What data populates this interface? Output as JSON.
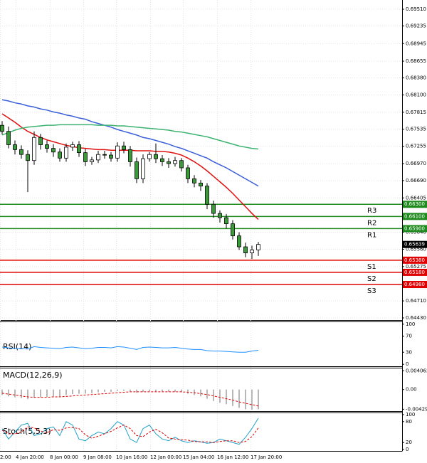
{
  "chart_data": [
    {
      "type": "candlestick",
      "open": [
        0.676,
        0.675,
        0.6728,
        0.672,
        0.6712,
        0.6702,
        0.674,
        0.6728,
        0.6722,
        0.6716,
        0.6706,
        0.6724,
        0.6728,
        0.6715,
        0.67,
        0.6703,
        0.6712,
        0.6711,
        0.6706,
        0.6726,
        0.672,
        0.67,
        0.6672,
        0.6705,
        0.6712,
        0.6705,
        0.67,
        0.6697,
        0.6702,
        0.669,
        0.6672,
        0.6665,
        0.666,
        0.663,
        0.6615,
        0.6608,
        0.6598,
        0.6578,
        0.656,
        0.655,
        0.6555
      ],
      "high": [
        0.6767,
        0.6758,
        0.6735,
        0.6727,
        0.6719,
        0.675,
        0.6746,
        0.6735,
        0.6729,
        0.6722,
        0.673,
        0.6733,
        0.6734,
        0.6721,
        0.6708,
        0.6718,
        0.6718,
        0.6716,
        0.6732,
        0.6733,
        0.6726,
        0.6707,
        0.6712,
        0.6716,
        0.673,
        0.6711,
        0.6706,
        0.6708,
        0.6706,
        0.6695,
        0.6678,
        0.667,
        0.6665,
        0.6636,
        0.662,
        0.6614,
        0.6604,
        0.6584,
        0.6567,
        0.6562,
        0.6568
      ],
      "low": [
        0.6745,
        0.6722,
        0.6712,
        0.6705,
        0.665,
        0.6695,
        0.672,
        0.6715,
        0.6708,
        0.67,
        0.67,
        0.6718,
        0.6708,
        0.6693,
        0.6695,
        0.6698,
        0.6705,
        0.67,
        0.67,
        0.6714,
        0.6692,
        0.6665,
        0.6665,
        0.67,
        0.6698,
        0.6693,
        0.669,
        0.6692,
        0.6684,
        0.6665,
        0.6658,
        0.6652,
        0.6622,
        0.6608,
        0.66,
        0.659,
        0.6572,
        0.6555,
        0.6543,
        0.654,
        0.6545
      ],
      "close": [
        0.675,
        0.6728,
        0.672,
        0.6712,
        0.6702,
        0.674,
        0.6728,
        0.6722,
        0.6716,
        0.6706,
        0.6724,
        0.6728,
        0.6715,
        0.67,
        0.6703,
        0.6712,
        0.6711,
        0.6706,
        0.6726,
        0.672,
        0.67,
        0.6672,
        0.6705,
        0.6712,
        0.6705,
        0.67,
        0.6697,
        0.6702,
        0.669,
        0.6672,
        0.6665,
        0.666,
        0.663,
        0.6615,
        0.6608,
        0.6598,
        0.6578,
        0.656,
        0.655,
        0.6555,
        0.65639
      ],
      "up_color": "#ffffff",
      "down_color": "#3a9a3a",
      "lines": [
        {
          "color": "#3a5fd9",
          "values": [
            0.6802,
            0.68,
            0.6797,
            0.6795,
            0.6792,
            0.679,
            0.6787,
            0.6785,
            0.6782,
            0.678,
            0.6777,
            0.6775,
            0.6772,
            0.677,
            0.6766,
            0.6763,
            0.676,
            0.6757,
            0.6753,
            0.675,
            0.6747,
            0.6744,
            0.674,
            0.6738,
            0.6735,
            0.6732,
            0.6729,
            0.6725,
            0.6722,
            0.6718,
            0.6714,
            0.671,
            0.6706,
            0.67,
            0.6695,
            0.669,
            0.6684,
            0.6678,
            0.6672,
            0.6666,
            0.666
          ]
        },
        {
          "color": "#e01010",
          "values": [
            0.6779,
            0.6772,
            0.6765,
            0.6757,
            0.675,
            0.6745,
            0.674,
            0.6736,
            0.6733,
            0.673,
            0.6727,
            0.6725,
            0.6723,
            0.6722,
            0.6721,
            0.672,
            0.672,
            0.6719,
            0.6719,
            0.6719,
            0.6719,
            0.6718,
            0.6718,
            0.6718,
            0.6717,
            0.6717,
            0.6716,
            0.6714,
            0.6711,
            0.6706,
            0.67,
            0.6693,
            0.6685,
            0.6676,
            0.6667,
            0.6658,
            0.6648,
            0.6637,
            0.6626,
            0.6615,
            0.6605
          ]
        },
        {
          "color": "#3cb371",
          "values": [
            0.6744,
            0.6748,
            0.6752,
            0.6755,
            0.6757,
            0.6758,
            0.6759,
            0.676,
            0.676,
            0.6761,
            0.6761,
            0.6761,
            0.6761,
            0.6761,
            0.6761,
            0.676,
            0.676,
            0.676,
            0.6759,
            0.6759,
            0.6758,
            0.6757,
            0.6756,
            0.6755,
            0.6754,
            0.6753,
            0.6752,
            0.675,
            0.6749,
            0.6747,
            0.6745,
            0.6743,
            0.6741,
            0.6738,
            0.6735,
            0.6732,
            0.6729,
            0.6726,
            0.6724,
            0.6722,
            0.6721
          ]
        }
      ],
      "levels": [
        {
          "name": "R3",
          "value": 0.663,
          "label": "0.66300",
          "color": "#1f8b1f"
        },
        {
          "name": "R2",
          "value": 0.661,
          "label": "0.66100",
          "color": "#1f8b1f"
        },
        {
          "name": "R1",
          "value": 0.659,
          "label": "0.65900",
          "color": "#1f8b1f"
        },
        {
          "name": "S1",
          "value": 0.6538,
          "label": "0.65380",
          "color": "#e00000"
        },
        {
          "name": "S2",
          "value": 0.6518,
          "label": "0.65180",
          "color": "#e00000"
        },
        {
          "name": "S3",
          "value": 0.6498,
          "label": "0.64980",
          "color": "#e00000"
        }
      ],
      "last_price": 0.65639,
      "last_price_color": "#000000",
      "ylim": [
        0.64395,
        0.69662
      ],
      "yticks": [
        {
          "value": 0.6951,
          "label": "0.69510"
        },
        {
          "value": 0.69235,
          "label": "0.69235"
        },
        {
          "value": 0.68945,
          "label": "0.68945"
        },
        {
          "value": 0.68655,
          "label": "0.68655"
        },
        {
          "value": 0.6838,
          "label": "0.68380"
        },
        {
          "value": 0.681,
          "label": "0.68100"
        },
        {
          "value": 0.67815,
          "label": "0.67815"
        },
        {
          "value": 0.67535,
          "label": "0.67535"
        },
        {
          "value": 0.67255,
          "label": "0.67255"
        },
        {
          "value": 0.6697,
          "label": "0.66970"
        },
        {
          "value": 0.6669,
          "label": "0.66690"
        },
        {
          "value": 0.66405,
          "label": "0.66405"
        },
        {
          "value": 0.6584,
          "label": "0.65840"
        },
        {
          "value": 0.6556,
          "label": "0.65560"
        },
        {
          "value": 0.65275,
          "label": "0.65275"
        },
        {
          "value": 0.6471,
          "label": "0.64710"
        },
        {
          "value": 0.6443,
          "label": "0.64430"
        }
      ],
      "grid": true,
      "x_labels": [
        "2:00",
        "4 Jan 20:00",
        "8 Jan 00:00",
        "9 Jan 08:00",
        "10 Jan 16:00",
        "12 Jan 00:00",
        "15 Jan 04:00",
        "16 Jan 12:00",
        "17 Jan 20:00"
      ]
    },
    {
      "type": "line",
      "title": "RSI(14)",
      "ylim": [
        -5,
        105
      ],
      "yticks": [
        100,
        70,
        30,
        0
      ],
      "series": [
        {
          "color": "#1e90ff",
          "values": [
            43,
            41,
            40,
            39,
            38,
            44,
            42,
            41,
            40,
            39,
            42,
            43,
            41,
            39,
            40,
            42,
            42,
            41,
            44,
            43,
            40,
            37,
            42,
            43,
            42,
            41,
            41,
            42,
            40,
            38,
            37,
            37,
            34,
            33,
            33,
            32,
            31,
            30,
            30,
            33,
            35
          ]
        }
      ]
    },
    {
      "type": "bar",
      "title": "MACD(12,26,9)",
      "ylim": [
        -0.0047,
        0.0046
      ],
      "yticks": [
        0.004062,
        {
          "value": 0,
          "label": "0.00"
        },
        -0.004297
      ],
      "color": "#a0a0a0",
      "values": [
        -0.0012,
        -0.0015,
        -0.0017,
        -0.0019,
        -0.0021,
        -0.0018,
        -0.0017,
        -0.0016,
        -0.0015,
        -0.0015,
        -0.0012,
        -0.001,
        -0.0009,
        -0.0009,
        -0.0008,
        -0.0006,
        -0.0005,
        -0.0005,
        -0.0003,
        -0.0003,
        -0.0004,
        -0.0007,
        -0.0005,
        -0.0004,
        -0.0004,
        -0.0004,
        -0.0005,
        -0.0005,
        -0.0006,
        -0.0009,
        -0.0012,
        -0.0015,
        -0.002,
        -0.0025,
        -0.0029,
        -0.0032,
        -0.0036,
        -0.004,
        -0.0043,
        -0.0044,
        -0.0043
      ],
      "series": [
        {
          "color": "#e00000",
          "dash": true,
          "values": [
            -0.0008,
            -0.001,
            -0.0012,
            -0.0014,
            -0.0016,
            -0.0017,
            -0.0017,
            -0.0017,
            -0.0016,
            -0.0016,
            -0.0015,
            -0.0014,
            -0.0013,
            -0.0012,
            -0.0011,
            -0.001,
            -0.0009,
            -0.0008,
            -0.0007,
            -0.0006,
            -0.0005,
            -0.0005,
            -0.0005,
            -0.0005,
            -0.0005,
            -0.0005,
            -0.0005,
            -0.0005,
            -0.0005,
            -0.0006,
            -0.0007,
            -0.0009,
            -0.0011,
            -0.0014,
            -0.0017,
            -0.002,
            -0.0023,
            -0.0027,
            -0.003,
            -0.0033,
            -0.0036
          ]
        }
      ]
    },
    {
      "type": "line",
      "title": "Stoch(5,5,3)",
      "ylim": [
        -4,
        104
      ],
      "yticks": [
        100,
        80,
        20,
        0
      ],
      "series": [
        {
          "color": "#1ea0c8",
          "values": [
            60,
            30,
            50,
            70,
            75,
            40,
            45,
            60,
            65,
            40,
            80,
            70,
            30,
            25,
            40,
            50,
            45,
            60,
            80,
            70,
            30,
            20,
            60,
            70,
            45,
            30,
            25,
            35,
            25,
            20,
            25,
            22,
            18,
            20,
            30,
            25,
            20,
            15,
            35,
            60,
            90
          ]
        },
        {
          "color": "#e00000",
          "dash": true,
          "values": [
            55,
            45,
            45,
            50,
            65,
            62,
            53,
            48,
            57,
            55,
            62,
            63,
            60,
            42,
            32,
            38,
            45,
            52,
            62,
            70,
            60,
            40,
            37,
            50,
            58,
            48,
            33,
            30,
            28,
            27,
            23,
            22,
            22,
            20,
            23,
            25,
            25,
            20,
            23,
            37,
            62
          ]
        }
      ]
    }
  ]
}
